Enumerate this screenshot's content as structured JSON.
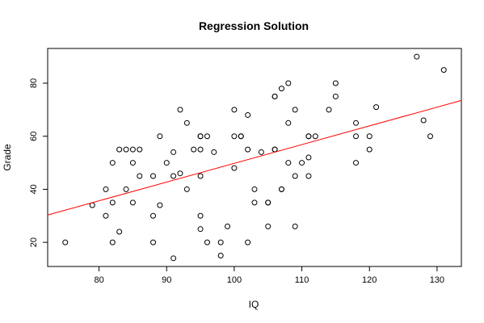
{
  "chart_data": {
    "type": "scatter",
    "title": "Regression Solution",
    "xlabel": "IQ",
    "ylabel": "Grade",
    "xlim": [
      72.4,
      133.6
    ],
    "ylim": [
      10.9,
      93.1
    ],
    "xticks": [
      80,
      90,
      100,
      110,
      120,
      130
    ],
    "yticks": [
      20,
      40,
      60,
      80
    ],
    "grid": false,
    "point_color": "#000000",
    "line_color": "#ff0000",
    "regression_line": {
      "x": [
        72.4,
        133.6
      ],
      "y": [
        30.3,
        73.5
      ]
    },
    "points": [
      [
        75,
        20
      ],
      [
        79,
        34
      ],
      [
        81,
        40
      ],
      [
        81,
        30
      ],
      [
        82,
        50
      ],
      [
        82,
        35
      ],
      [
        82,
        20
      ],
      [
        83,
        55
      ],
      [
        83,
        24
      ],
      [
        84,
        55
      ],
      [
        84,
        40
      ],
      [
        85,
        55
      ],
      [
        85,
        50
      ],
      [
        85,
        35
      ],
      [
        86,
        55
      ],
      [
        86,
        45
      ],
      [
        88,
        45
      ],
      [
        88,
        30
      ],
      [
        88,
        20
      ],
      [
        89,
        60
      ],
      [
        89,
        34
      ],
      [
        90,
        50
      ],
      [
        91,
        54
      ],
      [
        91,
        45
      ],
      [
        91,
        14
      ],
      [
        92,
        70
      ],
      [
        92,
        46
      ],
      [
        93,
        65
      ],
      [
        93,
        40
      ],
      [
        94,
        55
      ],
      [
        95,
        60
      ],
      [
        95,
        60
      ],
      [
        95,
        55
      ],
      [
        95,
        45
      ],
      [
        95,
        30
      ],
      [
        95,
        25
      ],
      [
        96,
        60
      ],
      [
        96,
        20
      ],
      [
        97,
        54
      ],
      [
        98,
        20
      ],
      [
        98,
        15
      ],
      [
        99,
        26
      ],
      [
        100,
        70
      ],
      [
        100,
        60
      ],
      [
        100,
        48
      ],
      [
        101,
        60
      ],
      [
        101,
        60
      ],
      [
        102,
        68
      ],
      [
        102,
        55
      ],
      [
        102,
        20
      ],
      [
        103,
        40
      ],
      [
        103,
        35
      ],
      [
        104,
        54
      ],
      [
        105,
        35
      ],
      [
        105,
        35
      ],
      [
        105,
        26
      ],
      [
        106,
        75
      ],
      [
        106,
        75
      ],
      [
        106,
        55
      ],
      [
        106,
        55
      ],
      [
        107,
        78
      ],
      [
        107,
        40
      ],
      [
        107,
        40
      ],
      [
        108,
        80
      ],
      [
        108,
        65
      ],
      [
        108,
        50
      ],
      [
        109,
        70
      ],
      [
        109,
        45
      ],
      [
        109,
        26
      ],
      [
        110,
        50
      ],
      [
        111,
        60
      ],
      [
        111,
        60
      ],
      [
        111,
        52
      ],
      [
        111,
        45
      ],
      [
        112,
        60
      ],
      [
        114,
        70
      ],
      [
        115,
        80
      ],
      [
        115,
        75
      ],
      [
        118,
        65
      ],
      [
        118,
        60
      ],
      [
        118,
        50
      ],
      [
        120,
        60
      ],
      [
        120,
        55
      ],
      [
        121,
        71
      ],
      [
        127,
        90
      ],
      [
        128,
        66
      ],
      [
        129,
        60
      ],
      [
        131,
        85
      ]
    ]
  }
}
